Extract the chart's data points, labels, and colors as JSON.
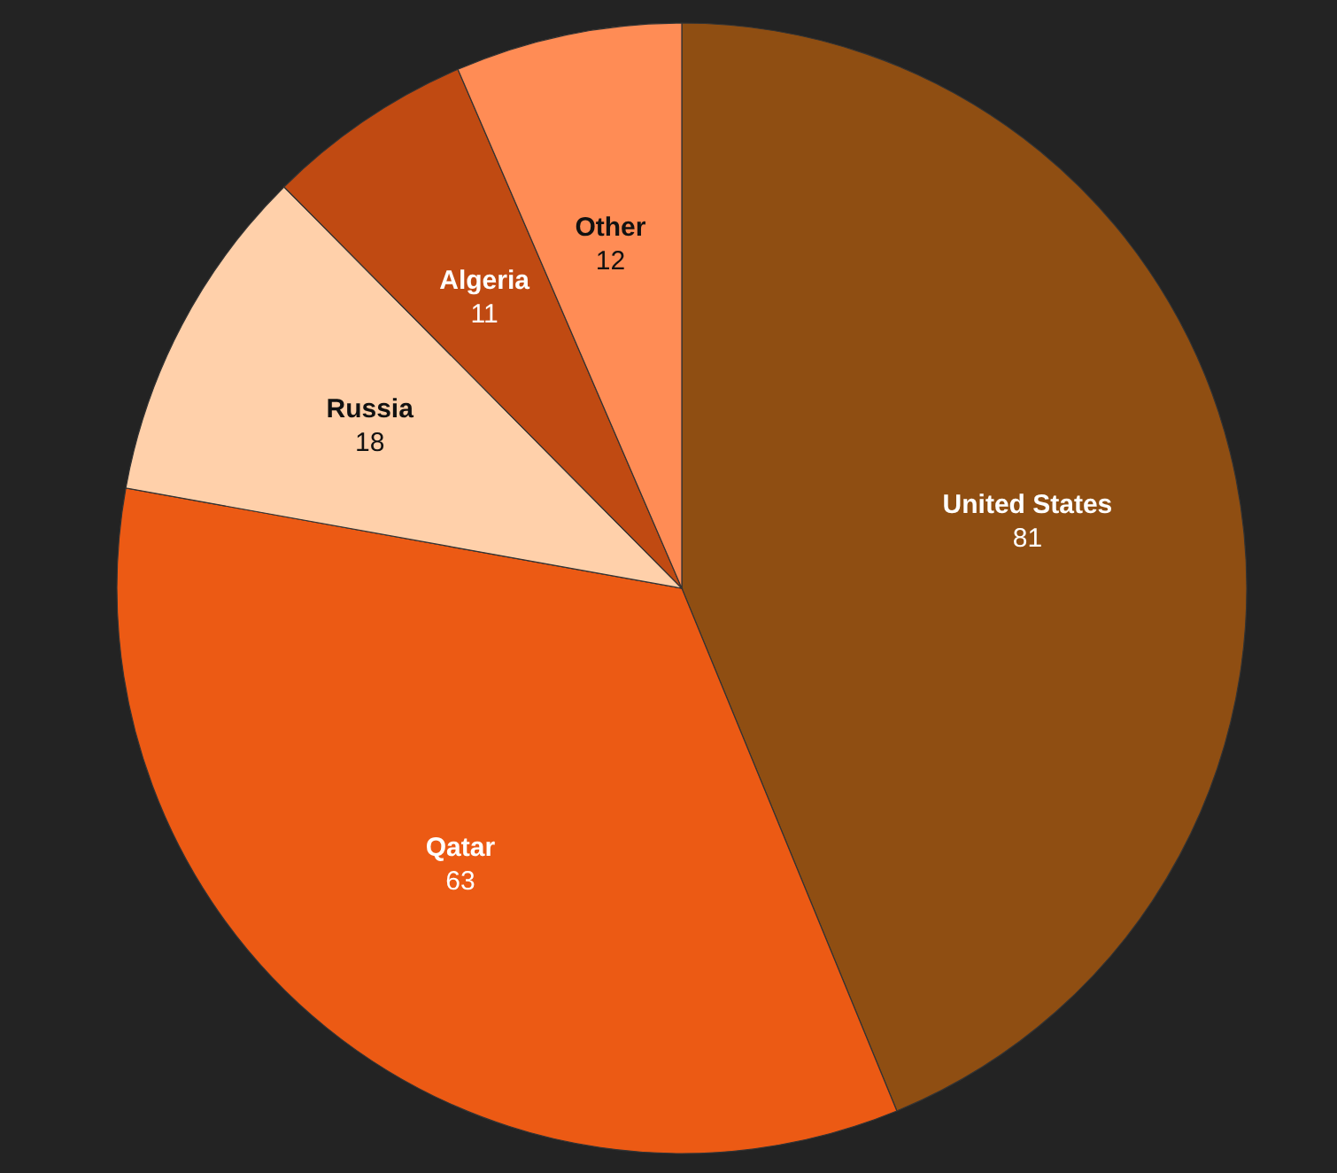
{
  "chart_data": {
    "type": "pie",
    "categories": [
      "United States",
      "Qatar",
      "Russia",
      "Algeria",
      "Other"
    ],
    "values": [
      81,
      63,
      18,
      11,
      12
    ],
    "colors": [
      "#8f4e12",
      "#ec5a14",
      "#ffd0aa",
      "#c04a12",
      "#ff8c55"
    ],
    "data_labels": true
  }
}
